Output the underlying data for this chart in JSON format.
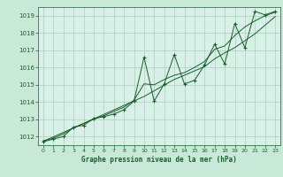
{
  "title": "Graphe pression niveau de la mer (hPa)",
  "bg_color": "#c8e8d8",
  "plot_bg_color": "#d8f0e8",
  "line_color": "#1a5e2a",
  "grid_color": "#aacfbc",
  "ylim": [
    1011.5,
    1019.5
  ],
  "xlim": [
    -0.5,
    23.5
  ],
  "yticks": [
    1012,
    1013,
    1014,
    1015,
    1016,
    1017,
    1018,
    1019
  ],
  "xticks": [
    0,
    1,
    2,
    3,
    4,
    5,
    6,
    7,
    8,
    9,
    10,
    11,
    12,
    13,
    14,
    15,
    16,
    17,
    18,
    19,
    20,
    21,
    22,
    23
  ],
  "hours": [
    0,
    1,
    2,
    3,
    4,
    5,
    6,
    7,
    8,
    9,
    10,
    11,
    12,
    13,
    14,
    15,
    16,
    17,
    18,
    19,
    20,
    21,
    22,
    23
  ],
  "pressure_main": [
    1011.7,
    1011.85,
    1012.0,
    1012.55,
    1012.65,
    1013.05,
    1013.15,
    1013.3,
    1013.55,
    1014.05,
    1016.6,
    1014.05,
    1015.05,
    1016.75,
    1015.05,
    1015.25,
    1016.15,
    1017.35,
    1016.2,
    1018.55,
    1017.15,
    1019.25,
    1019.05,
    1019.25
  ],
  "pressure_smooth1": [
    1011.75,
    1011.9,
    1012.15,
    1012.5,
    1012.75,
    1013.0,
    1013.2,
    1013.45,
    1013.7,
    1014.1,
    1015.05,
    1015.0,
    1015.3,
    1015.55,
    1015.7,
    1016.0,
    1016.35,
    1017.05,
    1017.25,
    1017.85,
    1018.35,
    1018.7,
    1019.0,
    1019.2
  ],
  "pressure_trend": [
    1011.72,
    1011.98,
    1012.24,
    1012.5,
    1012.76,
    1013.02,
    1013.28,
    1013.54,
    1013.8,
    1014.06,
    1014.32,
    1014.65,
    1014.98,
    1015.31,
    1015.55,
    1015.8,
    1016.05,
    1016.5,
    1016.85,
    1017.15,
    1017.55,
    1017.95,
    1018.45,
    1018.95
  ]
}
